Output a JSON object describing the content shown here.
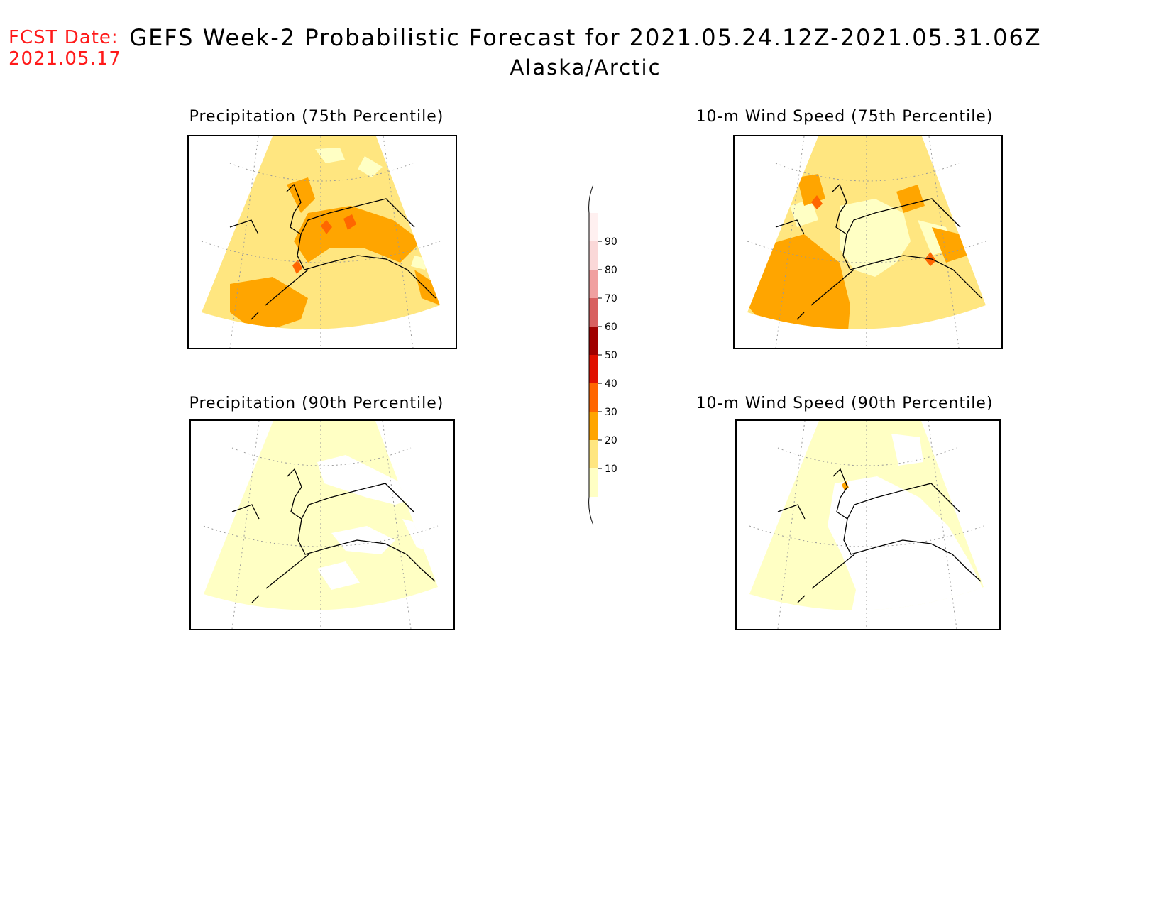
{
  "fcst_date": {
    "label": "FCST Date:",
    "value": "2021.05.17"
  },
  "title": "GEFS Week-2 Probabilistic Forecast for 2021.05.24.12Z-2021.05.31.06Z",
  "subtitle": "Alaska/Arctic",
  "panels": [
    {
      "title": "Precipitation (75th Percentile)"
    },
    {
      "title": "10-m Wind Speed (75th Percentile)"
    },
    {
      "title": "Precipitation (90th Percentile)"
    },
    {
      "title": "10-m Wind Speed (90th Percentile)"
    }
  ],
  "legend": {
    "levels": [
      "10",
      "20",
      "30",
      "40",
      "50",
      "60",
      "70",
      "80",
      "90"
    ],
    "colors": [
      "#ffffc4",
      "#ffe680",
      "#ffa500",
      "#ff6600",
      "#e01000",
      "#a00000",
      "#d86060",
      "#f0a0a0",
      "#fad8d8",
      "#fff0f0"
    ]
  }
}
